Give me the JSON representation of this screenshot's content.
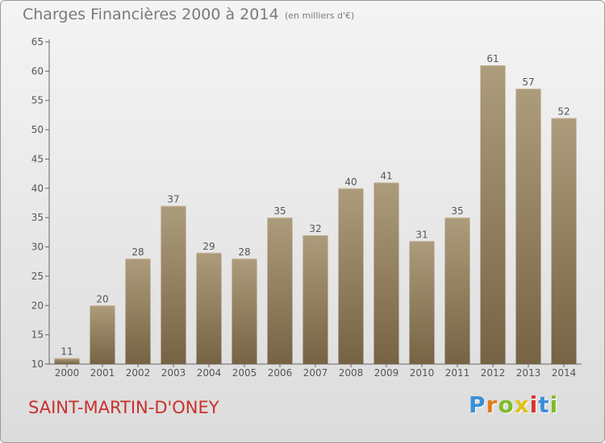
{
  "header": {
    "title": "Charges Financières 2000 à 2014",
    "subtitle": "(en milliers d'€)"
  },
  "footer": {
    "commune": "SAINT-MARTIN-D'ONEY",
    "brand": "Proxiti",
    "brand_colors": [
      "#3a8fd8",
      "#e07a1f",
      "#7cbd2a",
      "#e2c019",
      "#d9342b",
      "#3a8fd8",
      "#7cbd2a"
    ]
  },
  "colors": {
    "bar_top": "#ad9c7c",
    "bar_bottom": "#766344",
    "commune": "#c9302c",
    "text": "#555555"
  },
  "chart_data": {
    "type": "bar",
    "title": "Charges Financières 2000 à 2014",
    "subtitle": "(en milliers d'€)",
    "xlabel": "",
    "ylabel": "",
    "categories": [
      "2000",
      "2001",
      "2002",
      "2003",
      "2004",
      "2005",
      "2006",
      "2007",
      "2008",
      "2009",
      "2010",
      "2011",
      "2012",
      "2013",
      "2014"
    ],
    "values": [
      11,
      20,
      28,
      37,
      29,
      28,
      35,
      32,
      40,
      41,
      31,
      35,
      61,
      57,
      52
    ],
    "ylim": [
      10,
      65
    ],
    "yticks": [
      10,
      15,
      20,
      25,
      30,
      35,
      40,
      45,
      50,
      55,
      60,
      65
    ],
    "grid": false,
    "data_labels": true
  }
}
